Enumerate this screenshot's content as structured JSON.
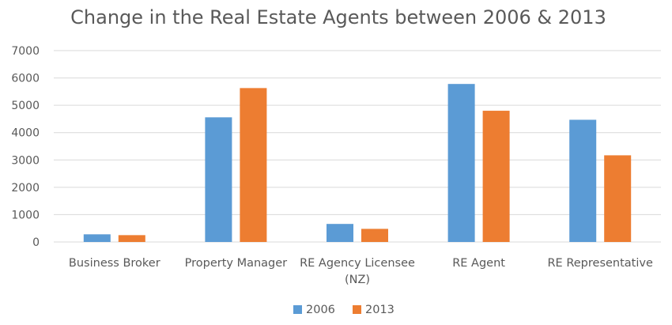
{
  "chart_data": {
    "type": "bar",
    "title": "Change in the Real Estate Agents between 2006 & 2013",
    "xlabel": "",
    "ylabel": "",
    "ylim": [
      0,
      7000
    ],
    "yticks": [
      0,
      1000,
      2000,
      3000,
      4000,
      5000,
      6000,
      7000
    ],
    "categories": [
      [
        "Business Broker"
      ],
      [
        "Property Manager"
      ],
      [
        "RE Agency Licensee",
        "(NZ)"
      ],
      [
        "RE Agent"
      ],
      [
        "RE Representative"
      ]
    ],
    "series": [
      {
        "name": "2006",
        "color": "#5b9bd5",
        "values": [
          280,
          4560,
          660,
          5780,
          4470
        ]
      },
      {
        "name": "2013",
        "color": "#ed7d31",
        "values": [
          250,
          5630,
          480,
          4800,
          3170
        ]
      }
    ],
    "grid": true,
    "legend": "bottom-center"
  }
}
